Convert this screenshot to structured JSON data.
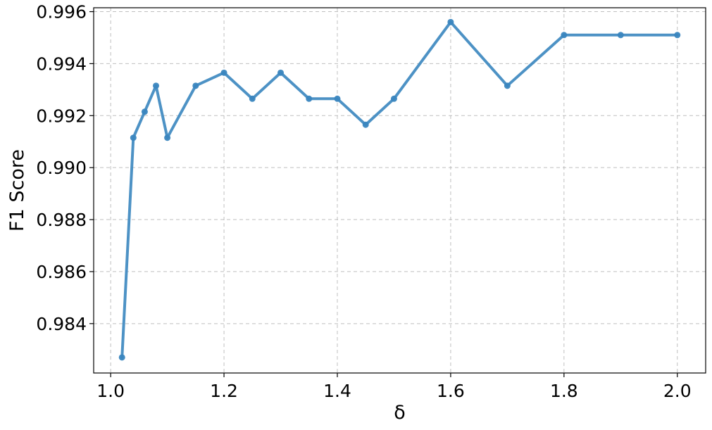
{
  "chart_data": {
    "type": "line",
    "title": "",
    "xlabel": "δ",
    "ylabel": "F1 Score",
    "xlim": [
      0.97,
      2.05
    ],
    "ylim": [
      0.9821,
      0.99615
    ],
    "xticks": [
      1.0,
      1.2,
      1.4,
      1.6,
      1.8,
      2.0
    ],
    "xtick_labels": [
      "1.0",
      "1.2",
      "1.4",
      "1.6",
      "1.8",
      "2.0"
    ],
    "yticks": [
      0.984,
      0.986,
      0.988,
      0.99,
      0.992,
      0.994,
      0.996
    ],
    "ytick_labels": [
      "0.984",
      "0.986",
      "0.988",
      "0.990",
      "0.992",
      "0.994",
      "0.996"
    ],
    "grid": true,
    "series": [
      {
        "name": "F1 Score",
        "color": "#3a86bf",
        "marker": "circle",
        "x": [
          1.02,
          1.04,
          1.06,
          1.08,
          1.1,
          1.15,
          1.2,
          1.25,
          1.3,
          1.35,
          1.4,
          1.45,
          1.5,
          1.6,
          1.7,
          1.8,
          1.9,
          2.0
        ],
        "y": [
          0.9827,
          0.99115,
          0.99215,
          0.99315,
          0.99115,
          0.99315,
          0.99365,
          0.99265,
          0.99365,
          0.99265,
          0.99265,
          0.99165,
          0.99265,
          0.9956,
          0.99315,
          0.9951,
          0.9951,
          0.9951
        ]
      }
    ]
  }
}
